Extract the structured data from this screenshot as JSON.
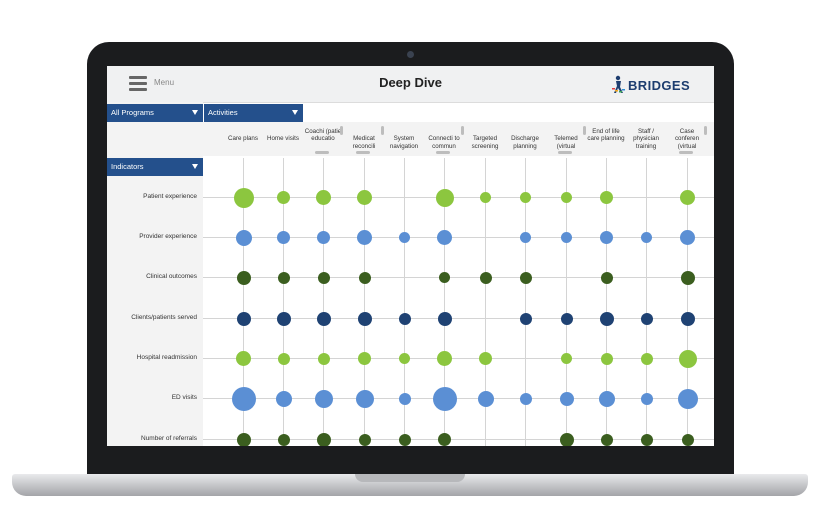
{
  "header": {
    "menu_label": "Menu",
    "title": "Deep Dive",
    "brand": "BRIDGES"
  },
  "filters": {
    "programs": "All Programs",
    "activities": "Activities",
    "indicators": "Indicators"
  },
  "columns": [
    "Care plans",
    "Home visits",
    "Coachi (patie educatio",
    "Medicat reconcili",
    "System navigation",
    "Connecti to commun",
    "Targeted screening",
    "Discharge planning",
    "Telemed (virtual",
    "End of life care planning",
    "Staff / physician training",
    "Case conferen (virtual"
  ],
  "rows": [
    "Patient experience",
    "Provider experience",
    "Clinical outcomes",
    "Clients/patients served",
    "Hospital readmission",
    "ED visits",
    "Number of referrals"
  ],
  "row_colors": [
    "#8cc63f",
    "#5b8fd4",
    "#3b5e1f",
    "#1f4273",
    "#8cc63f",
    "#5b8fd4",
    "#3b5e1f"
  ],
  "matrix_sizes": [
    [
      20,
      13,
      15,
      15,
      0,
      18,
      11,
      11,
      11,
      13,
      0,
      15
    ],
    [
      16,
      13,
      13,
      15,
      11,
      15,
      0,
      11,
      11,
      13,
      11,
      15
    ],
    [
      14,
      12,
      12,
      12,
      0,
      11,
      12,
      12,
      0,
      12,
      0,
      14
    ],
    [
      14,
      14,
      14,
      14,
      12,
      14,
      0,
      12,
      12,
      14,
      12,
      14
    ],
    [
      15,
      12,
      12,
      13,
      11,
      15,
      13,
      0,
      11,
      12,
      12,
      18
    ],
    [
      24,
      16,
      18,
      18,
      12,
      24,
      16,
      12,
      14,
      16,
      12,
      20
    ],
    [
      14,
      12,
      14,
      12,
      12,
      13,
      0,
      0,
      14,
      12,
      12,
      12
    ]
  ]
}
